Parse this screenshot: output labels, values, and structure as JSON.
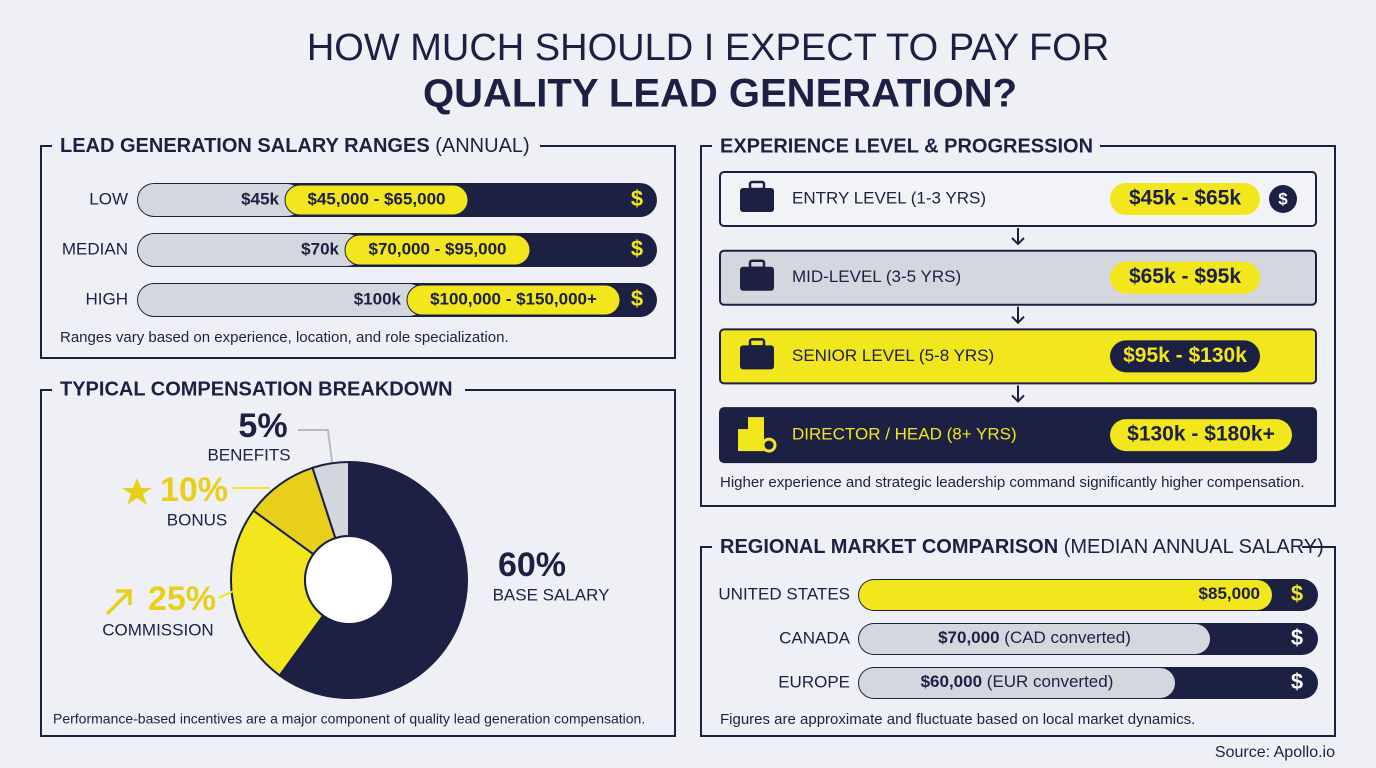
{
  "header": {
    "title_line1": "HOW MUCH SHOULD I EXPECT TO PAY FOR",
    "title_line2": "QUALITY LEAD GENERATION?"
  },
  "salary_ranges": {
    "title": "LEAD GENERATION SALARY RANGES",
    "title_note": "(ANNUAL)",
    "rows": [
      {
        "label": "LOW",
        "start": "$45k",
        "range": "$45,000 - $65,000"
      },
      {
        "label": "MEDIAN",
        "start": "$70k",
        "range": "$70,000 - $95,000"
      },
      {
        "label": "HIGH",
        "start": "$100k",
        "range": "$100,000 - $150,000+"
      }
    ],
    "icon": "$",
    "note": "Ranges vary based on experience, location, and role specialization."
  },
  "compensation": {
    "title": "TYPICAL COMPENSATION BREAKDOWN",
    "note": "Performance-based incentives are a major component of quality lead generation compensation."
  },
  "chart_data": {
    "type": "pie",
    "categories": [
      "BASE SALARY",
      "COMMISSION",
      "BONUS",
      "BENEFITS"
    ],
    "values": [
      60,
      25,
      10,
      5
    ],
    "value_labels": [
      "60%",
      "25%",
      "10%",
      "5%"
    ],
    "colors": [
      "#1c2043",
      "#f2e61c",
      "#e8cf1b",
      "#d4d6de"
    ],
    "donut": true
  },
  "experience": {
    "title": "EXPERIENCE LEVEL & PROGRESSION",
    "levels": [
      {
        "label": "ENTRY LEVEL (1-3 YRS)",
        "range": "$45k - $65k"
      },
      {
        "label": "MID-LEVEL (3-5 YRS)",
        "range": "$65k - $95k"
      },
      {
        "label": "SENIOR LEVEL (5-8 YRS)",
        "range": "$95k - $130k"
      },
      {
        "label": "DIRECTOR / HEAD (8+ YRS)",
        "range": "$130k - $180k+"
      }
    ],
    "note": "Higher experience and strategic leadership command significantly higher compensation."
  },
  "regional": {
    "title": "REGIONAL MARKET COMPARISON",
    "title_note": "(MEDIAN ANNUAL SALARY)",
    "rows": [
      {
        "label": "UNITED STATES",
        "value": "$85,000"
      },
      {
        "label": "CANADA",
        "value": "$70,000",
        "note": "(CAD converted)"
      },
      {
        "label": "EUROPE",
        "value": "$60,000",
        "note": "(EUR converted)"
      }
    ],
    "note": "Figures are approximate and fluctuate based on local market dynamics."
  },
  "source": "Source: Apollo.io"
}
